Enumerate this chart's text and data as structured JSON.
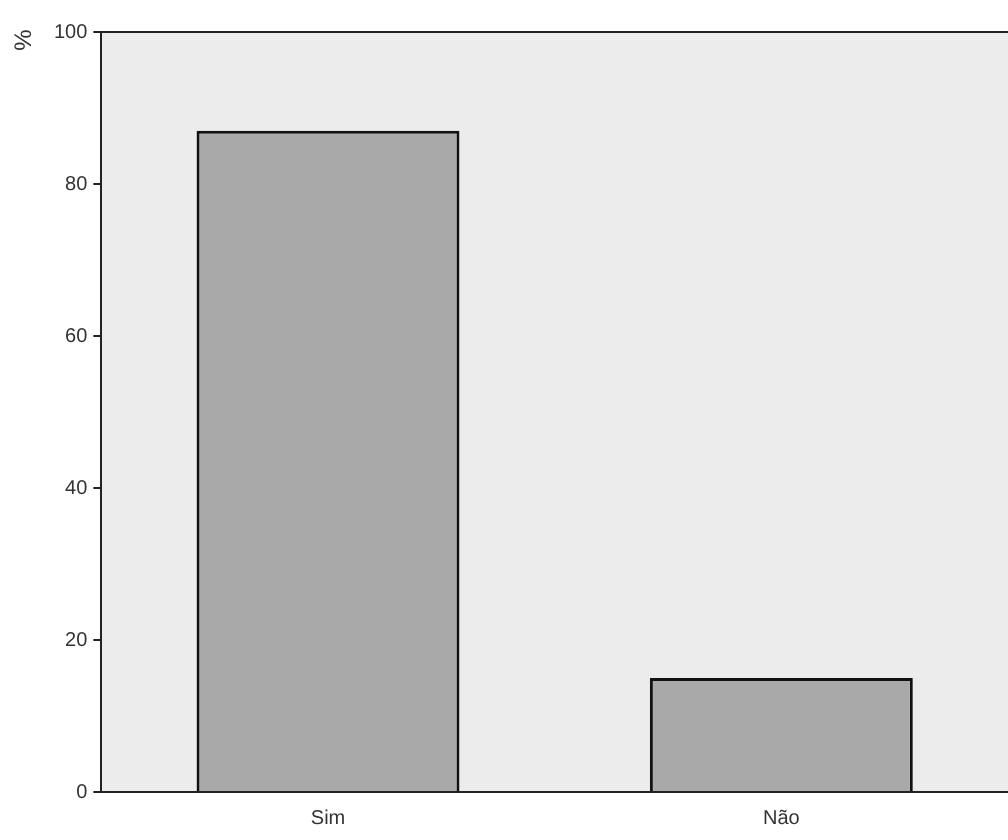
{
  "chart_data": {
    "type": "bar",
    "ylabel": "%",
    "categories": [
      "Sim",
      "Não"
    ],
    "values": [
      87,
      15
    ],
    "color": "#a9a9a9",
    "ylim": [
      0,
      100
    ],
    "yticks": [
      0,
      20,
      40,
      60,
      80,
      100
    ],
    "grid": false,
    "legend": false
  }
}
